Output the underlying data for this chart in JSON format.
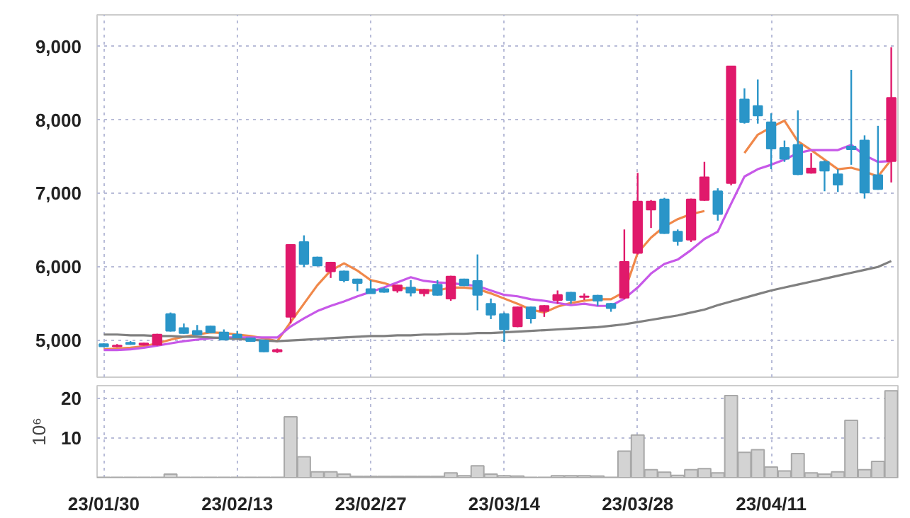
{
  "chart_data": [
    {
      "type": "candlestick",
      "ohlc": [
        [
          4950,
          4960,
          4910,
          4920
        ],
        [
          4920,
          4950,
          4910,
          4930
        ],
        [
          4970,
          4990,
          4940,
          4950
        ],
        [
          4940,
          4970,
          4930,
          4960
        ],
        [
          4940,
          5090,
          4930,
          5080
        ],
        [
          5360,
          5380,
          5120,
          5130
        ],
        [
          5170,
          5230,
          5090,
          5100
        ],
        [
          5130,
          5210,
          5070,
          5080
        ],
        [
          5190,
          5200,
          5100,
          5110
        ],
        [
          5110,
          5150,
          5000,
          5010
        ],
        [
          5080,
          5130,
          5030,
          5040
        ],
        [
          5030,
          5040,
          4980,
          4990
        ],
        [
          5000,
          5010,
          4840,
          4850
        ],
        [
          4850,
          4890,
          4830,
          4870
        ],
        [
          5320,
          6300,
          5230,
          6300
        ],
        [
          6340,
          6430,
          6000,
          6040
        ],
        [
          6130,
          6140,
          6010,
          6020
        ],
        [
          5940,
          6070,
          5850,
          6060
        ],
        [
          5940,
          5950,
          5790,
          5820
        ],
        [
          5830,
          5840,
          5670,
          5780
        ],
        [
          5700,
          5820,
          5640,
          5640
        ],
        [
          5700,
          5720,
          5650,
          5660
        ],
        [
          5680,
          5760,
          5650,
          5750
        ],
        [
          5720,
          5820,
          5600,
          5650
        ],
        [
          5640,
          5700,
          5600,
          5690
        ],
        [
          5760,
          5820,
          5610,
          5620
        ],
        [
          5570,
          5880,
          5540,
          5870
        ],
        [
          5830,
          5840,
          5740,
          5750
        ],
        [
          5810,
          6170,
          5410,
          5620
        ],
        [
          5500,
          5570,
          5290,
          5350
        ],
        [
          5360,
          5380,
          4980,
          5150
        ],
        [
          5190,
          5460,
          5180,
          5450
        ],
        [
          5450,
          5460,
          5230,
          5300
        ],
        [
          5400,
          5480,
          5320,
          5470
        ],
        [
          5550,
          5680,
          5500,
          5620
        ],
        [
          5650,
          5660,
          5500,
          5550
        ],
        [
          5590,
          5640,
          5550,
          5600
        ],
        [
          5610,
          5620,
          5470,
          5540
        ],
        [
          5500,
          5510,
          5390,
          5440
        ],
        [
          5580,
          6510,
          5560,
          6070
        ],
        [
          6190,
          7280,
          6170,
          6890
        ],
        [
          6780,
          6910,
          6530,
          6890
        ],
        [
          6920,
          6940,
          6450,
          6460
        ],
        [
          6480,
          6510,
          6290,
          6350
        ],
        [
          6370,
          6930,
          6340,
          6920
        ],
        [
          6910,
          7430,
          6900,
          7220
        ],
        [
          7030,
          7070,
          6630,
          6720
        ],
        [
          7140,
          8730,
          7110,
          8730
        ],
        [
          8280,
          8430,
          7950,
          7970
        ],
        [
          8190,
          8550,
          7950,
          8060
        ],
        [
          7970,
          8090,
          7330,
          7610
        ],
        [
          7620,
          7720,
          7430,
          7470
        ],
        [
          7660,
          8130,
          7250,
          7260
        ],
        [
          7280,
          7550,
          7270,
          7340
        ],
        [
          7430,
          7450,
          7030,
          7310
        ],
        [
          7260,
          7330,
          7020,
          7120
        ],
        [
          7640,
          8680,
          7390,
          7600
        ],
        [
          7720,
          7790,
          6930,
          7010
        ],
        [
          7250,
          7920,
          7050,
          7060
        ],
        [
          7440,
          8990,
          7150,
          8300
        ]
      ],
      "colors": [
        "#2a95c8",
        "#e0196b",
        "#2a95c8",
        "#e0196b",
        "#e0196b",
        "#2a95c8",
        "#2a95c8",
        "#2a95c8",
        "#2a95c8",
        "#2a95c8",
        "#2a95c8",
        "#2a95c8",
        "#2a95c8",
        "#e0196b",
        "#e0196b",
        "#2a95c8",
        "#2a95c8",
        "#e0196b",
        "#2a95c8",
        "#2a95c8",
        "#2a95c8",
        "#2a95c8",
        "#e0196b",
        "#2a95c8",
        "#e0196b",
        "#2a95c8",
        "#e0196b",
        "#2a95c8",
        "#2a95c8",
        "#2a95c8",
        "#2a95c8",
        "#e0196b",
        "#2a95c8",
        "#e0196b",
        "#e0196b",
        "#2a95c8",
        "#e0196b",
        "#2a95c8",
        "#2a95c8",
        "#e0196b",
        "#e0196b",
        "#e0196b",
        "#2a95c8",
        "#2a95c8",
        "#e0196b",
        "#e0196b",
        "#2a95c8",
        "#e0196b",
        "#2a95c8",
        "#2a95c8",
        "#2a95c8",
        "#2a95c8",
        "#2a95c8",
        "#e0196b",
        "#2a95c8",
        "#2a95c8",
        "#2a95c8",
        "#2a95c8",
        "#2a95c8",
        "#e0196b"
      ],
      "series": [
        {
          "type": "line",
          "color": "#f0884a",
          "values": [
            4880,
            4890,
            4900,
            4920,
            4960,
            5010,
            5050,
            5080,
            5110,
            5100,
            5080,
            5060,
            5030,
            4990,
            5250,
            5500,
            5750,
            5950,
            6050,
            5950,
            5820,
            5780,
            5720,
            5700,
            5680,
            5680,
            5720,
            5720,
            5700,
            5640,
            5570,
            5500,
            5420,
            5380,
            5460,
            5510,
            5540,
            5560,
            5560,
            5660,
            6190,
            6400,
            6550,
            6650,
            6720,
            6760,
            null,
            null,
            7550,
            7800,
            7900,
            7990,
            7710,
            7590,
            7460,
            7330,
            7350,
            7300,
            7230,
            7460
          ]
        },
        {
          "type": "line",
          "color": "#c758e8",
          "values": [
            4870,
            4870,
            4880,
            4900,
            4930,
            4960,
            4990,
            5010,
            5030,
            5040,
            5040,
            5040,
            5040,
            5040,
            5190,
            5300,
            5400,
            5470,
            5530,
            5600,
            5660,
            5720,
            5790,
            5860,
            5810,
            5790,
            5780,
            5760,
            5740,
            5680,
            5620,
            5600,
            5560,
            5540,
            5510,
            5480,
            5500,
            5470,
            5470,
            5570,
            5720,
            5910,
            6040,
            6100,
            6230,
            6380,
            6480,
            6860,
            7230,
            7330,
            7390,
            7460,
            7550,
            7590,
            7590,
            7590,
            7660,
            7520,
            7430,
            7440
          ]
        },
        {
          "type": "line",
          "color": "#808080",
          "values": [
            5080,
            5080,
            5070,
            5070,
            5060,
            5060,
            5050,
            5050,
            5040,
            5030,
            5020,
            5010,
            5000,
            4990,
            5000,
            5010,
            5020,
            5030,
            5040,
            5050,
            5060,
            5060,
            5070,
            5070,
            5080,
            5080,
            5090,
            5090,
            5100,
            5100,
            5110,
            5120,
            5130,
            5140,
            5150,
            5160,
            5170,
            5180,
            5200,
            5220,
            5250,
            5280,
            5310,
            5340,
            5380,
            5420,
            5480,
            5530,
            5580,
            5630,
            5680,
            5720,
            5760,
            5800,
            5840,
            5880,
            5920,
            5960,
            6000,
            6080
          ]
        }
      ],
      "ylim": [
        4500,
        9430
      ],
      "yticks": [
        {
          "value": 5000,
          "label": "5,000"
        },
        {
          "value": 6000,
          "label": "6,000"
        },
        {
          "value": 7000,
          "label": "7,000"
        },
        {
          "value": 8000,
          "label": "8,000"
        },
        {
          "value": 9000,
          "label": "9,000"
        }
      ],
      "grid": true,
      "tick_labels": "y"
    },
    {
      "type": "bar",
      "ylabel": "10⁶",
      "color": "#d3d3d3",
      "categories": [
        "23/01/30",
        null,
        null,
        null,
        null,
        null,
        null,
        null,
        null,
        null,
        "23/02/13",
        null,
        null,
        null,
        null,
        null,
        null,
        null,
        null,
        null,
        "23/02/27",
        null,
        null,
        null,
        null,
        null,
        null,
        null,
        null,
        null,
        "23/03/14",
        null,
        null,
        null,
        null,
        null,
        null,
        null,
        null,
        null,
        "23/03/28",
        null,
        null,
        null,
        null,
        null,
        null,
        null,
        null,
        null,
        "23/04/11",
        null,
        null,
        null,
        null,
        null,
        null,
        null,
        null,
        null
      ],
      "values": [
        0.1,
        0.1,
        0.1,
        0.1,
        0.1,
        0.9,
        0.1,
        0.1,
        0.1,
        0.1,
        0.1,
        0.1,
        0.1,
        0.1,
        15.4,
        5.3,
        1.5,
        1.5,
        0.9,
        0.3,
        0.3,
        0.3,
        0.3,
        0.3,
        0.3,
        0.3,
        1.2,
        0.5,
        3.0,
        0.9,
        0.5,
        0.4,
        0.1,
        0.1,
        0.5,
        0.5,
        0.5,
        0.4,
        0.1,
        6.7,
        10.8,
        2.0,
        1.4,
        0.6,
        2.0,
        2.3,
        1.2,
        20.8,
        6.4,
        7.1,
        2.7,
        1.7,
        6.1,
        1.2,
        0.9,
        1.5,
        14.5,
        2.0,
        4.1,
        22.0
      ],
      "ylim": [
        0,
        23.3
      ],
      "yticks": [
        10,
        20
      ],
      "grid": true
    }
  ]
}
